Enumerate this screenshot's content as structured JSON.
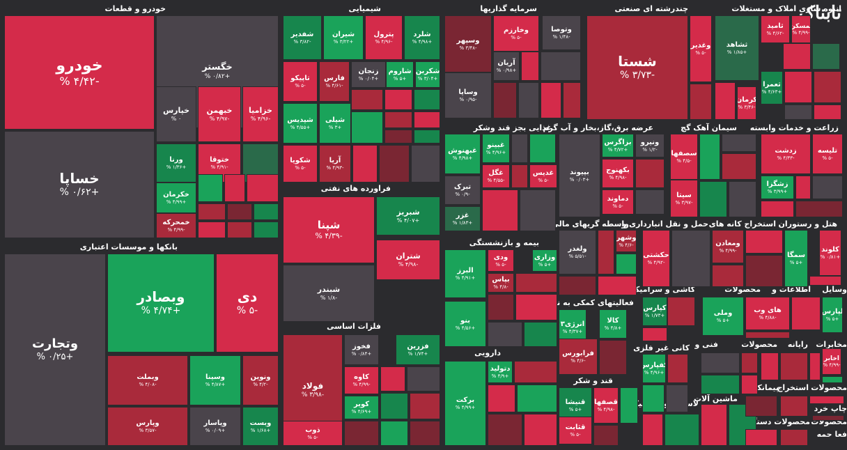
{
  "logo": "تابناک",
  "colors": {
    "bg": "#2b2b2e",
    "neutral": "#4a444b",
    "r1": "#d42b4a",
    "r2": "#a92a3b",
    "r3": "#7a2633",
    "g1": "#1aa35a",
    "g2": "#17864d",
    "g3": "#2a6a4a"
  },
  "chart_data": {
    "type": "heatmap",
    "sectors": [
      {
        "title": "خودرو و قطعات"
      },
      {
        "title": "بانکها و موسسات اعتباری"
      },
      {
        "title": "شیمیایی"
      },
      {
        "title": "فراورده های نفتی"
      },
      {
        "title": "فلزات اساسی"
      },
      {
        "title": "سرمایه گذاریها"
      },
      {
        "title": "غذایی بجز قند وشکر"
      },
      {
        "title": "بیمه و بازنشستگی"
      },
      {
        "title": "دارویی"
      },
      {
        "title": "چندرشته ای صنعتی"
      },
      {
        "title": "انبوه سازی املاک و مستغلات"
      },
      {
        "title": "عرضه برق،گاز،بخار و آب گرم"
      },
      {
        "title": "سیمان آهک گچ"
      },
      {
        "title": "زراعت و خدمات وابسته"
      },
      {
        "title": "واسطه گریهای مالی و"
      },
      {
        "title": "حمل و نقل انبارداری و"
      },
      {
        "title": "استخراج کانه های"
      },
      {
        "title": "هتل و رستوران"
      },
      {
        "title": "فعالیتهای کمکی به نهاد"
      },
      {
        "title": "کاشی و سرامیک"
      },
      {
        "title": "محصولات"
      },
      {
        "title": "اطلاعات و"
      },
      {
        "title": "وسایل"
      },
      {
        "title": "قند و شکر"
      },
      {
        "title": "کانی غیر فلزی"
      },
      {
        "title": "فنی و"
      },
      {
        "title": "محصولات"
      },
      {
        "title": "رایانه"
      },
      {
        "title": "مخابرات"
      },
      {
        "title": "ماشین آلات"
      },
      {
        "title": "لاستیک و پلاستیک"
      },
      {
        "title": "استخراج"
      },
      {
        "title": "پیمانکاری"
      },
      {
        "title": "محصولات"
      },
      {
        "title": "محصولات دستگاههای"
      },
      {
        "title": "محصولات"
      },
      {
        "title": "چاپ خرد"
      },
      {
        "title": "فعا حمه"
      }
    ],
    "tiles": [
      {
        "n": "خودرو",
        "v": "-۴/۴۲ %",
        "c": "r1"
      },
      {
        "n": "خساپا",
        "v": "+۰/۶۲ %",
        "c": "neutral"
      },
      {
        "n": "خگستر",
        "v": "+۰/۸۲ %",
        "c": "neutral"
      },
      {
        "n": "خپارس",
        "v": "۰ %",
        "c": "neutral"
      },
      {
        "n": "خبهمن",
        "v": "-۴/۹۷ %",
        "c": "r1"
      },
      {
        "n": "خزامیا",
        "v": "-۴/۹۶ %",
        "c": "r1"
      },
      {
        "n": "ورنا",
        "v": "+۱/۳۶ %",
        "c": "g2"
      },
      {
        "n": "ختوقا",
        "v": "-۴/۹۱ %",
        "c": "r1"
      },
      {
        "n": "خکرمان",
        "v": "+۴/۹۹ %",
        "c": "g1"
      },
      {
        "n": "خمحرکه",
        "v": "-۴/۹۹ %",
        "c": "r2"
      },
      {
        "n": "وتجارت",
        "v": "+۰/۲۵ %",
        "c": "neutral"
      },
      {
        "n": "وبصادر",
        "v": "+۴/۷۴ %",
        "c": "g1"
      },
      {
        "n": "دی",
        "v": "-۵ %",
        "c": "r1"
      },
      {
        "n": "وبملت",
        "v": "-۴/۰۸ %",
        "c": "r2"
      },
      {
        "n": "وسینا",
        "v": "+۴/۸۷ %",
        "c": "g1"
      },
      {
        "n": "ونوین",
        "v": "-۴/۲ %",
        "c": "r2"
      },
      {
        "n": "وپارس",
        "v": "-۳/۵۷ %",
        "c": "r2"
      },
      {
        "n": "وپاسار",
        "v": "+۰/۰۹ %",
        "c": "neutral"
      },
      {
        "n": "وبست",
        "v": "+۱/۶۸ %",
        "c": "g2"
      },
      {
        "n": "شفدیر",
        "v": "-۳/۸۲ %",
        "c": "g2"
      },
      {
        "n": "شیران",
        "v": "+۳/۲۲ %",
        "c": "g1"
      },
      {
        "n": "پترول",
        "v": "-۴/۹۶ %",
        "c": "r1"
      },
      {
        "n": "شلرد",
        "v": "+۴/۹۸ %",
        "c": "g2"
      },
      {
        "n": "تاپیکو",
        "v": "-۵ %",
        "c": "r1"
      },
      {
        "n": "فارس",
        "v": "-۴/۶۱ %",
        "c": "r2"
      },
      {
        "n": "زنجان",
        "v": "+۰/۰۴ %",
        "c": "neutral"
      },
      {
        "n": "شاروم",
        "v": "+۵ %",
        "c": "g1"
      },
      {
        "n": "شکربن",
        "v": "+۳/۰۴ %",
        "c": "g1"
      },
      {
        "n": "شپلی",
        "v": "+۳ %",
        "c": "g1"
      },
      {
        "n": "شپدیس",
        "v": "+۴/۵۵ %",
        "c": "g1"
      },
      {
        "n": "شکویا",
        "v": "-۵ %",
        "c": "r1"
      },
      {
        "n": "آریا",
        "v": "-۴/۹۳ %",
        "c": "r2"
      },
      {
        "n": "شپنا",
        "v": "-۴/۳۹ %",
        "c": "r1"
      },
      {
        "n": "شبریز",
        "v": "+۴/۰۷ %",
        "c": "g2"
      },
      {
        "n": "شتران",
        "v": "-۴/۹۸ %",
        "c": "r1"
      },
      {
        "n": "شبندر",
        "v": "-۱/۸ %",
        "c": "neutral"
      },
      {
        "n": "فولاد",
        "v": "-۳/۹۸ %",
        "c": "r2"
      },
      {
        "n": "فخوز",
        "v": "+۰/۸۴ %",
        "c": "neutral"
      },
      {
        "n": "فزرین",
        "v": "+۱/۷۴ %",
        "c": "g2"
      },
      {
        "n": "کاوه",
        "v": "-۴/۹۹ %",
        "c": "r1"
      },
      {
        "n": "کویر",
        "v": "+۴/۶۹ %",
        "c": "g1"
      },
      {
        "n": "ذوب",
        "v": "-۵ %",
        "c": "r1"
      },
      {
        "n": "وسپهر",
        "v": "-۳/۴۸ %",
        "c": "r3"
      },
      {
        "n": "وخارزم",
        "v": "-۵ %",
        "c": "r1"
      },
      {
        "n": "وتوصا",
        "v": "-۱/۴۸ %",
        "c": "neutral"
      },
      {
        "n": "آریان",
        "v": "+۰/۹۸ %",
        "c": "neutral"
      },
      {
        "n": "وساپا",
        "v": "-۰/۹۵ %",
        "c": "neutral"
      },
      {
        "n": "غبهنوش",
        "v": "+۴/۹۸ %",
        "c": "g1"
      },
      {
        "n": "غبینو",
        "v": "+۴/۹۶ %",
        "c": "g1"
      },
      {
        "n": "غگل",
        "v": "-۴/۵۵ %",
        "c": "r1"
      },
      {
        "n": "غدیس",
        "v": "-۵ %",
        "c": "r1"
      },
      {
        "n": "تبرک",
        "v": "-۰/۹ %",
        "c": "neutral"
      },
      {
        "n": "غزر",
        "v": "+۱/۸۳ %",
        "c": "g3"
      },
      {
        "n": "البرز",
        "v": "+۴/۹۱ %",
        "c": "g1"
      },
      {
        "n": "ودی",
        "v": "-۵ %",
        "c": "r1"
      },
      {
        "n": "وزاری",
        "v": "+۵ %",
        "c": "g1"
      },
      {
        "n": "بپاس",
        "v": "-۴/۸ %",
        "c": "r2"
      },
      {
        "n": "بنو",
        "v": "+۴/۵۶ %",
        "c": "g1"
      },
      {
        "n": "دتولید",
        "v": "+۴/۹ %",
        "c": "g1"
      },
      {
        "n": "برکت",
        "v": "+۴/۹۹ %",
        "c": "g1"
      },
      {
        "n": "شستا",
        "v": "-۳/۷۳ %",
        "c": "r2"
      },
      {
        "n": "وغدیر",
        "v": "-۵ %",
        "c": "r1"
      },
      {
        "n": "ثشاهد",
        "v": "+۱/۸۵ %",
        "c": "g3"
      },
      {
        "n": "ثامید",
        "v": "-۴/۶۲ %",
        "c": "r1"
      },
      {
        "n": "ثمسکن",
        "v": "-۴/۹۹ %",
        "c": "r1"
      },
      {
        "n": "ثعمرا",
        "v": "+۴/۶۳ %",
        "c": "g2"
      },
      {
        "n": "کرمان",
        "v": "-۳/۴۶ %",
        "c": "r1"
      },
      {
        "n": "بزاگرس",
        "v": "+۴/۷۲ %",
        "c": "g1"
      },
      {
        "n": "ونیرو",
        "v": "-۱/۲ %",
        "c": "neutral"
      },
      {
        "n": "بپیوند",
        "v": "+۰/۰۳ %",
        "c": "neutral"
      },
      {
        "n": "بکهنوج",
        "v": "-۴/۹۸ %",
        "c": "r1"
      },
      {
        "n": "دماوند",
        "v": "-۵ %",
        "c": "r1"
      },
      {
        "n": "سصفها",
        "v": "-۴/۵ %",
        "c": "r1"
      },
      {
        "n": "سیتا",
        "v": "-۳/۹۷ %",
        "c": "r1"
      },
      {
        "n": "زدشت",
        "v": "-۴/۳۳ %",
        "c": "r1"
      },
      {
        "n": "تلیسه",
        "v": "-۵ %",
        "c": "r1"
      },
      {
        "n": "زشگزا",
        "v": "+۳/۹۹ %",
        "c": "g1"
      },
      {
        "n": "ولغدر",
        "v": "-۵/۵۱ %",
        "c": "neutral"
      },
      {
        "n": "وشهر",
        "v": "-۴/۶ %",
        "c": "r2"
      },
      {
        "n": "حکشتی",
        "v": "-۴/۹۲ %",
        "c": "r1"
      },
      {
        "n": "ومعادن",
        "v": "-۴/۹۹ %",
        "c": "r2"
      },
      {
        "n": "سمگا",
        "v": "+۵ %",
        "c": "g1"
      },
      {
        "n": "کلوند",
        "v": "+۰/۸۱ %",
        "c": "r1"
      },
      {
        "n": "انرژی۳",
        "v": "+۴/۳۷ %",
        "c": "g1"
      },
      {
        "n": "کالا",
        "v": "+۴/۸ %",
        "c": "g1"
      },
      {
        "n": "فرابورس",
        "v": "-۴/۶ %",
        "c": "r2"
      },
      {
        "n": "کپارس",
        "v": "+۱/۷۳ %",
        "c": "g2"
      },
      {
        "n": "وملی",
        "v": "+۵ %",
        "c": "g1"
      },
      {
        "n": "های وب",
        "v": "-۴/۸۸ %",
        "c": "r1"
      },
      {
        "n": "لپارس",
        "v": "+۵ %",
        "c": "g1"
      },
      {
        "n": "قنیشا",
        "v": "+۵ %",
        "c": "g2"
      },
      {
        "n": "قصفها",
        "v": "-۴/۹۸ %",
        "c": "r1"
      },
      {
        "n": "قثابت",
        "v": "-۵ %",
        "c": "r1"
      },
      {
        "n": "کفپارس",
        "v": "+۴/۹۶ %",
        "c": "g1"
      },
      {
        "n": "اخابر",
        "v": "-۴/۹۹ %",
        "c": "r1"
      }
    ]
  }
}
